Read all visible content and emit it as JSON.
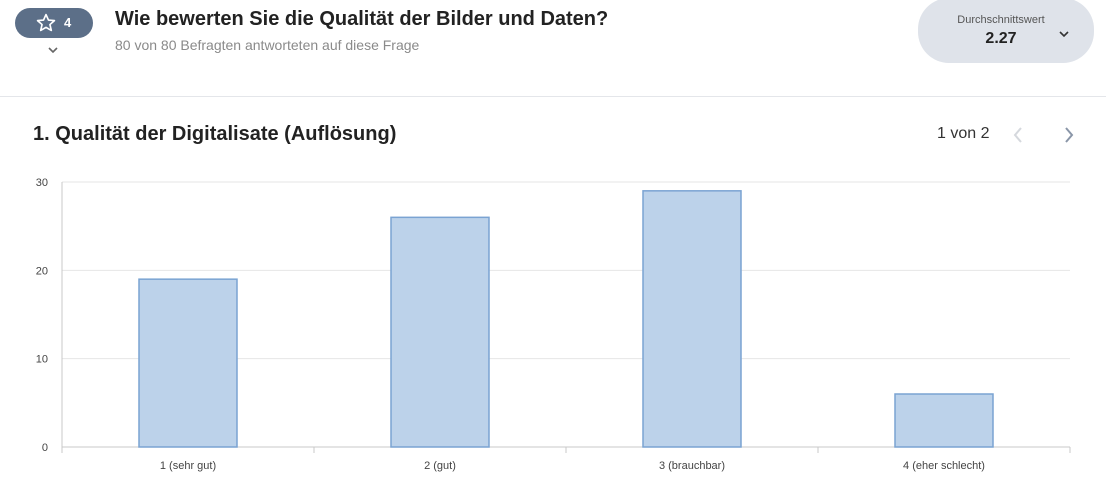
{
  "question": {
    "type_count": "4",
    "type_icon": "star-icon",
    "title": "Wie bewerten Sie die Qualität der Bilder und Daten?",
    "subtitle": "80 von 80 Befragten antworteten auf diese Frage"
  },
  "average": {
    "label": "Durchschnittswert",
    "value": "2.27"
  },
  "pager": {
    "text": "1 von 2"
  },
  "colors": {
    "bar_fill": "#bcd2ea",
    "bar_stroke": "#7aa3d2",
    "pill": "#5c6f88",
    "avg_box": "#dfe3ea"
  },
  "chart_data": {
    "type": "bar",
    "title": "1. Qualität der Digitalisate (Auflösung)",
    "categories": [
      "1 (sehr gut)",
      "2 (gut)",
      "3 (brauchbar)",
      "4 (eher schlecht)"
    ],
    "values": [
      19,
      26,
      29,
      6
    ],
    "ylim": [
      0,
      30
    ],
    "yticks": [
      0,
      10,
      20,
      30
    ],
    "grid": true
  }
}
